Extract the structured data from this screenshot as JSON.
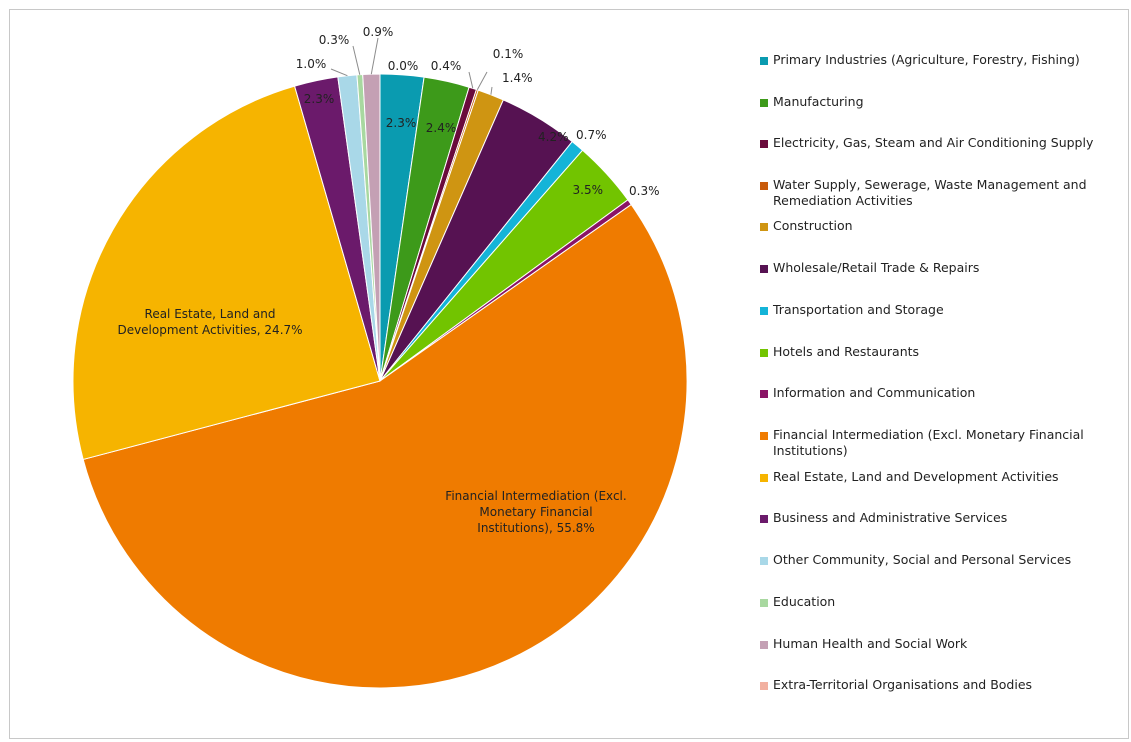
{
  "chart_data": {
    "type": "pie",
    "title": "",
    "legend_position": "right",
    "slices": [
      {
        "name": "Primary Industries (Agriculture, Forestry, Fishing)",
        "value": 2.3,
        "label": "2.3%",
        "color": "#0a9bb0"
      },
      {
        "name": "Manufacturing",
        "value": 2.4,
        "label": "2.4%",
        "color": "#3d9a1a"
      },
      {
        "name": "Electricity, Gas, Steam and Air Conditioning Supply",
        "value": 0.4,
        "label": "0.4%",
        "color": "#6a0b3c"
      },
      {
        "name": "Water Supply, Sewerage, Waste Management and Remediation Activities",
        "value": 0.1,
        "label": "0.1%",
        "color": "#c85a0a"
      },
      {
        "name": "Construction",
        "value": 1.4,
        "label": "1.4%",
        "color": "#cf9512"
      },
      {
        "name": "Wholesale/Retail Trade & Repairs",
        "value": 4.2,
        "label": "4.2%",
        "color": "#561252"
      },
      {
        "name": "Transportation and Storage",
        "value": 0.7,
        "label": "0.7%",
        "color": "#14b4d8"
      },
      {
        "name": "Hotels and Restaurants",
        "value": 3.5,
        "label": "3.5%",
        "color": "#72c400"
      },
      {
        "name": "Information and Communication",
        "value": 0.3,
        "label": "0.3%",
        "color": "#8a1466"
      },
      {
        "name": "Financial Intermediation (Excl. Monetary Financial Institutions)",
        "value": 55.8,
        "label": "Financial Intermediation (Excl. Monetary Financial Institutions), 55.8%",
        "color": "#ef7b00"
      },
      {
        "name": "Real Estate, Land and Development Activities",
        "value": 24.7,
        "label": "Real Estate, Land and Development Activities, 24.7%",
        "color": "#f6b400"
      },
      {
        "name": "Business and Administrative Services",
        "value": 2.3,
        "label": "2.3%",
        "color": "#6b1a6b"
      },
      {
        "name": "Other Community, Social and Personal Services",
        "value": 1.0,
        "label": "1.0%",
        "color": "#a9d8e8"
      },
      {
        "name": "Education",
        "value": 0.3,
        "label": "0.3%",
        "color": "#a8d8a0"
      },
      {
        "name": "Human Health and Social Work",
        "value": 0.9,
        "label": "0.9%",
        "color": "#c4a0b4"
      },
      {
        "name": "Extra-Territorial Organisations and Bodies",
        "value": 0.0,
        "label": "0.0%",
        "color": "#f2b0a0"
      }
    ]
  }
}
